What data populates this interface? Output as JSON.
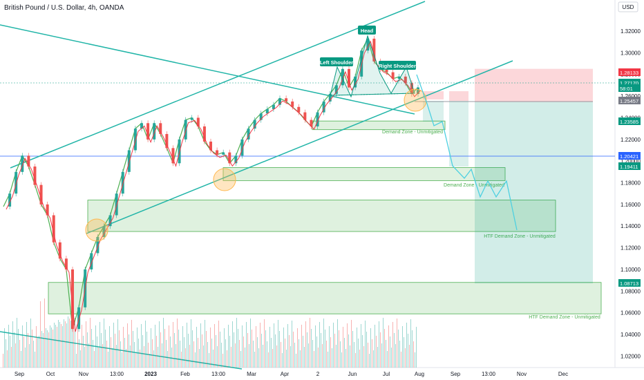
{
  "header": {
    "title": "British Pound / U.S. Dollar, 4h, OANDA",
    "currency": "USD"
  },
  "chart_data": {
    "type": "line",
    "ylim": [
      1.0,
      1.35
    ],
    "y_ticks": [
      "1.32000",
      "1.30000",
      "1.28000",
      "1.26000",
      "1.24000",
      "1.22000",
      "1.20000",
      "1.18000",
      "1.16000",
      "1.14000",
      "1.12000",
      "1.10000",
      "1.08000",
      "1.06000",
      "1.04000",
      "1.02000"
    ],
    "x_ticks": [
      "Sep",
      "Oct",
      "Nov",
      "13:00",
      "2023",
      "Feb",
      "13:00",
      "Mar",
      "Apr",
      "2",
      "Jun",
      "Jul",
      "Aug",
      "Sep",
      "13:00",
      "Nov",
      "Dec"
    ],
    "price": [
      1.158,
      1.17,
      1.19,
      1.205,
      1.195,
      1.178,
      1.16,
      1.15,
      1.125,
      1.11,
      1.1,
      1.045,
      1.065,
      1.1,
      1.115,
      1.13,
      1.14,
      1.15,
      1.17,
      1.19,
      1.21,
      1.23,
      1.235,
      1.22,
      1.235,
      1.225,
      1.212,
      1.198,
      1.22,
      1.238,
      1.24,
      1.232,
      1.218,
      1.21,
      1.206,
      1.208,
      1.198,
      1.205,
      1.22,
      1.23,
      1.238,
      1.244,
      1.248,
      1.252,
      1.258,
      1.255,
      1.25,
      1.245,
      1.238,
      1.232,
      1.245,
      1.255,
      1.262,
      1.27,
      1.285,
      1.268,
      1.278,
      1.302,
      1.313,
      1.292,
      1.285,
      1.282,
      1.276,
      1.278,
      1.272,
      1.262,
      1.268
    ],
    "price_labels": [
      {
        "text": "1.28133",
        "color": "#f23645"
      },
      {
        "text": "1.27170",
        "color": "#089981"
      },
      {
        "text": "58:01",
        "color": "#089981"
      },
      {
        "text": "1.25457",
        "color": "#787b86"
      },
      {
        "text": "1.23585",
        "color": "#089981"
      },
      {
        "text": "1.20421",
        "color": "#2962ff"
      },
      {
        "text": "1.19411",
        "color": "#089981"
      },
      {
        "text": "1.08713",
        "color": "#089981"
      }
    ],
    "pattern_labels": [
      "Head",
      "Left Shoulder",
      "Right Shoulder"
    ],
    "zones": [
      {
        "text": "Demand Zone - Unmitigated",
        "top": 1.237,
        "bottom": 1.229
      },
      {
        "text": "Demand Zone - Unmitigated",
        "top": 1.194,
        "bottom": 1.182
      },
      {
        "text": "HTF Demand Zone - Unmitigated",
        "top": 1.164,
        "bottom": 1.135
      },
      {
        "text": "HTF Demand Zone - Unmitigated",
        "top": 1.088,
        "bottom": 1.059
      }
    ],
    "trade": {
      "target": 1.08713,
      "entry": 1.25457,
      "stop": 1.28133
    },
    "colors": {
      "up": "#26a69a",
      "down": "#ef5350",
      "accent": "#089981",
      "hline": "#2962ff"
    }
  }
}
